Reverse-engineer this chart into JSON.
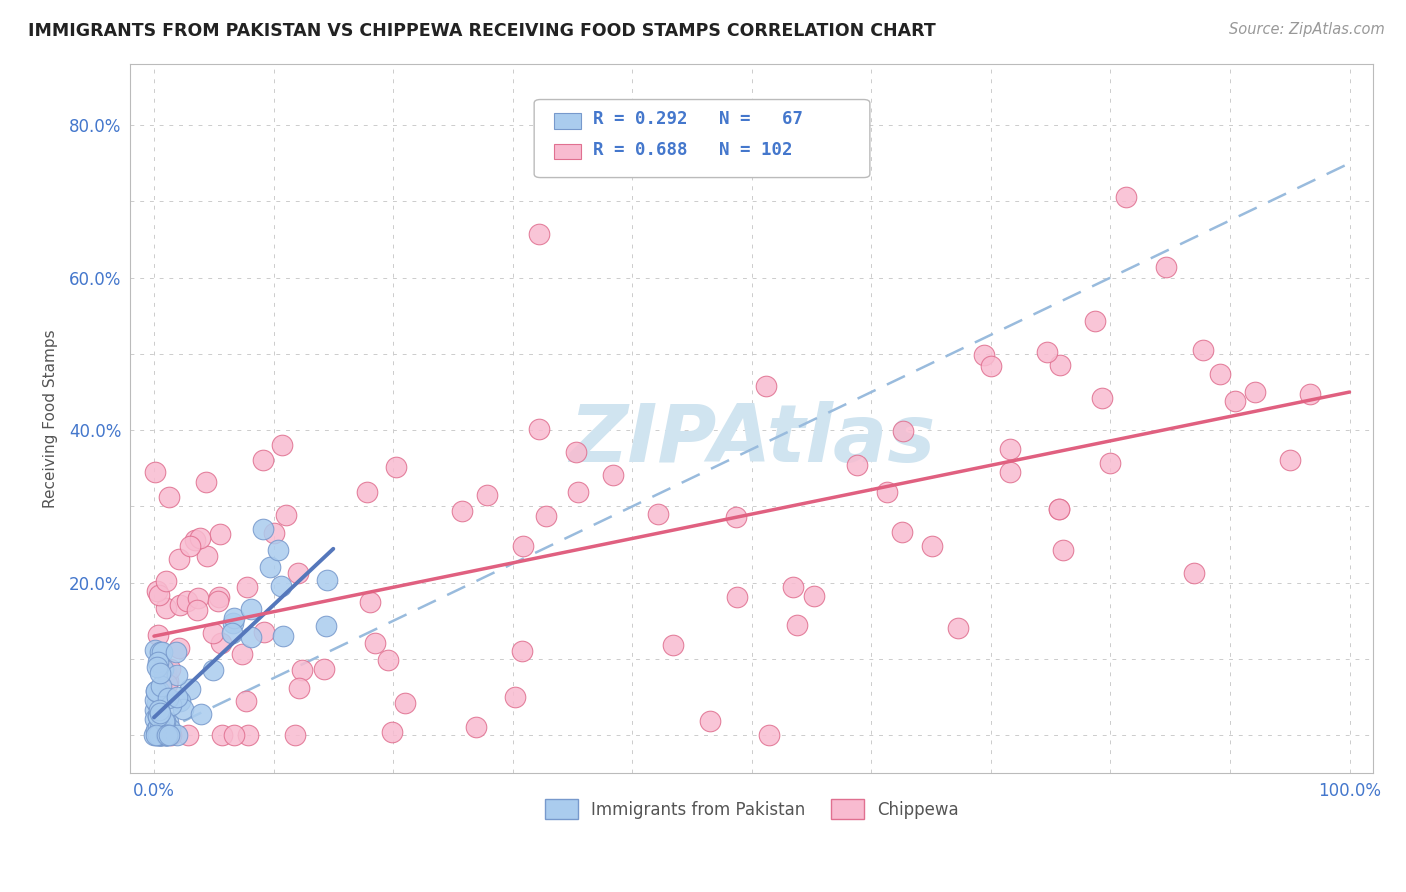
{
  "title": "IMMIGRANTS FROM PAKISTAN VS CHIPPEWA RECEIVING FOOD STAMPS CORRELATION CHART",
  "source_text": "Source: ZipAtlas.com",
  "ylabel": "Receiving Food Stamps",
  "xlim": [
    -0.02,
    1.02
  ],
  "ylim": [
    -0.05,
    0.88
  ],
  "x_ticks": [
    0.0,
    0.1,
    0.2,
    0.3,
    0.4,
    0.5,
    0.6,
    0.7,
    0.8,
    0.9,
    1.0
  ],
  "x_tick_labels": [
    "0.0%",
    "",
    "",
    "",
    "",
    "",
    "",
    "",
    "",
    "",
    "100.0%"
  ],
  "y_ticks": [
    0.0,
    0.1,
    0.2,
    0.3,
    0.4,
    0.5,
    0.6,
    0.7,
    0.8
  ],
  "y_tick_labels": [
    "",
    "",
    "20.0%",
    "",
    "40.0%",
    "",
    "60.0%",
    "",
    "80.0%"
  ],
  "R_blue": 0.292,
  "N_blue": 67,
  "R_pink": 0.688,
  "N_pink": 102,
  "blue_color": "#aaccee",
  "pink_color": "#f8bbd0",
  "blue_edge_color": "#7799cc",
  "pink_edge_color": "#e07090",
  "blue_line_color": "#5577bb",
  "pink_line_color": "#e06080",
  "dash_line_color": "#99bbdd",
  "legend_text_color": "#4477cc",
  "watermark_color": "#d0e4f0",
  "background_color": "#ffffff",
  "grid_color": "#cccccc",
  "title_color": "#222222",
  "axis_label_color": "#4477cc",
  "ylabel_color": "#555555"
}
